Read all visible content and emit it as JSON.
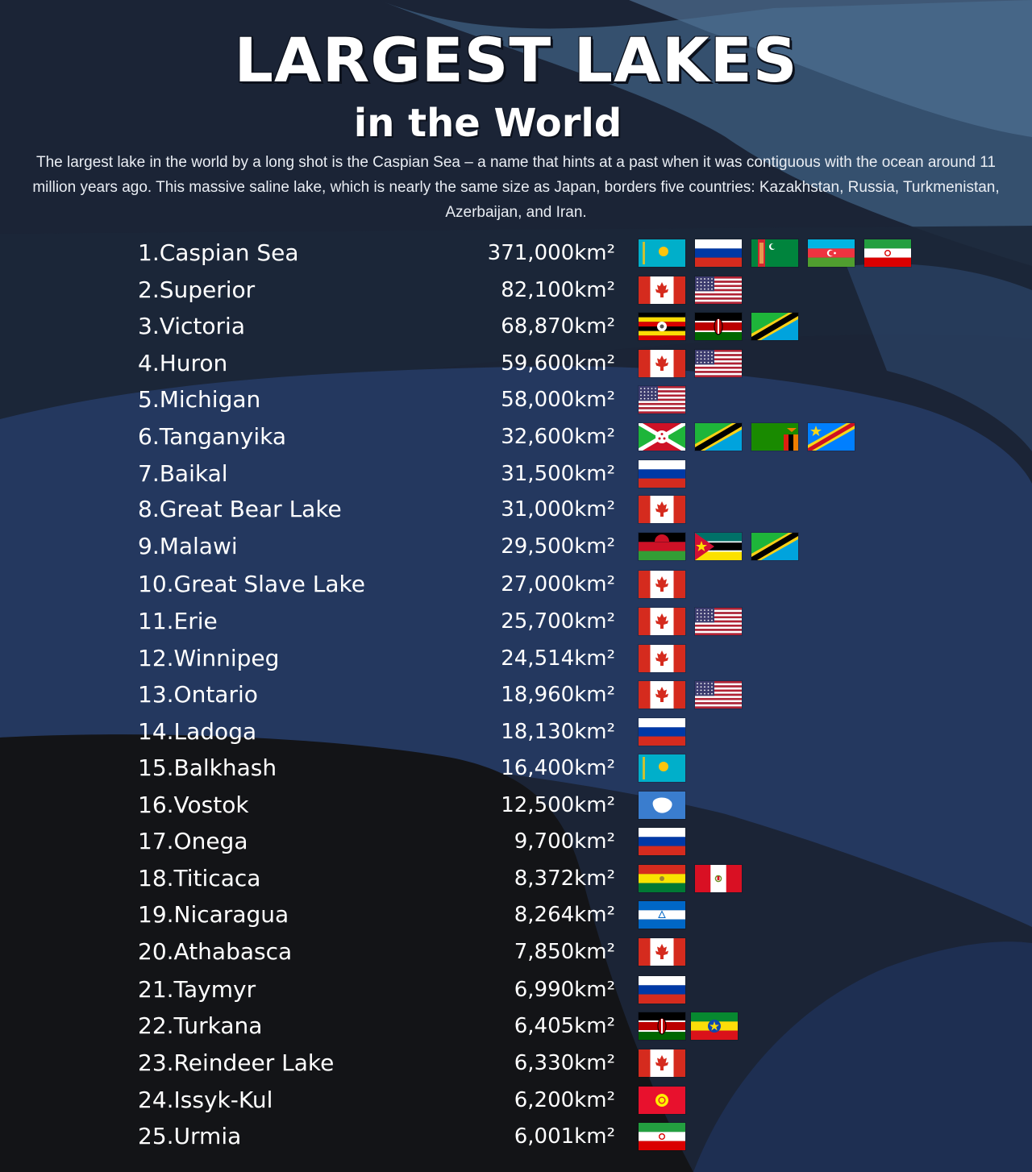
{
  "header": {
    "title": "LARGEST LAKES",
    "subtitle": "in the World",
    "description": "The largest lake in the world by a long shot is the Caspian Sea – a name that hints at a past when it was contiguous with the ocean around 11 million years ago. This massive saline lake, which is nearly the same size as Japan, borders five countries: Kazakhstan, Russia, Turkmenistan, Azerbaijan, and Iran."
  },
  "colors": {
    "background": "#1b2436",
    "wave_blue": "#24385f",
    "wave_light": "#3e5d80",
    "dark_ground": "#131417",
    "text": "#ffffff"
  },
  "lakes": [
    {
      "label": "1.Caspian Sea",
      "area": "371,000km²",
      "flags": [
        "kazakhstan-flag-icon",
        "russia-flag-icon",
        "turkmenistan-flag-icon",
        "azerbaijan-flag-icon",
        "iran-flag-icon"
      ]
    },
    {
      "label": "2.Superior",
      "area": "82,100km²",
      "flags": [
        "canada-flag-icon",
        "usa-flag-icon"
      ]
    },
    {
      "label": "3.Victoria",
      "area": "68,870km²",
      "flags": [
        "uganda-flag-icon",
        "kenya-flag-icon",
        "tanzania-flag-icon"
      ]
    },
    {
      "label": "4.Huron",
      "area": "59,600km²",
      "flags": [
        "canada-flag-icon",
        "usa-flag-icon"
      ]
    },
    {
      "label": "5.Michigan",
      "area": "58,000km²",
      "flags": [
        "usa-flag-icon"
      ]
    },
    {
      "label": "6.Tanganyika",
      "area": "32,600km²",
      "flags": [
        "burundi-flag-icon",
        "tanzania-flag-icon",
        "zambia-flag-icon",
        "dr-congo-flag-icon"
      ]
    },
    {
      "label": "7.Baikal",
      "area": "31,500km²",
      "flags": [
        "russia-flag-icon"
      ]
    },
    {
      "label": "8.Great Bear Lake",
      "area": "31,000km²",
      "flags": [
        "canada-flag-icon"
      ]
    },
    {
      "label": "9.Malawi",
      "area": "29,500km²",
      "flags": [
        "malawi-flag-icon",
        "mozambique-flag-icon",
        "tanzania-flag-icon"
      ]
    },
    {
      "label": "10.Great Slave Lake",
      "area": "27,000km²",
      "flags": [
        "canada-flag-icon"
      ]
    },
    {
      "label": "11.Erie",
      "area": "25,700km²",
      "flags": [
        "canada-flag-icon",
        "usa-flag-icon"
      ]
    },
    {
      "label": "12.Winnipeg",
      "area": "24,514km²",
      "flags": [
        "canada-flag-icon"
      ]
    },
    {
      "label": "13.Ontario",
      "area": "18,960km²",
      "flags": [
        "canada-flag-icon",
        "usa-flag-icon"
      ]
    },
    {
      "label": "14.Ladoga",
      "area": "18,130km²",
      "flags": [
        "russia-flag-icon"
      ]
    },
    {
      "label": "15.Balkhash",
      "area": "16,400km²",
      "flags": [
        "kazakhstan-flag-icon"
      ]
    },
    {
      "label": "16.Vostok",
      "area": "12,500km²",
      "flags": [
        "antarctica-flag-icon"
      ]
    },
    {
      "label": "17.Onega",
      "area": "9,700km²",
      "flags": [
        "russia-flag-icon"
      ]
    },
    {
      "label": "18.Titicaca",
      "area": "8,372km²",
      "flags": [
        "bolivia-flag-icon",
        "peru-flag-icon"
      ]
    },
    {
      "label": "19.Nicaragua",
      "area": "8,264km²",
      "flags": [
        "nicaragua-flag-icon"
      ]
    },
    {
      "label": "20.Athabasca",
      "area": "7,850km²",
      "flags": [
        "canada-flag-icon"
      ]
    },
    {
      "label": "21.Taymyr",
      "area": "6,990km²",
      "flags": [
        "russia-flag-icon"
      ]
    },
    {
      "label": "22.Turkana",
      "area": "6,405km²",
      "flags": [
        "kenya-flag-icon",
        "ethiopia-flag-icon"
      ]
    },
    {
      "label": "23.Reindeer Lake",
      "area": "6,330km²",
      "flags": [
        "canada-flag-icon"
      ]
    },
    {
      "label": "24.Issyk-Kul",
      "area": "6,200km²",
      "flags": [
        "kyrgyzstan-flag-icon"
      ]
    },
    {
      "label": "25.Urmia",
      "area": "6,001km²",
      "flags": [
        "iran-flag-icon"
      ]
    }
  ]
}
